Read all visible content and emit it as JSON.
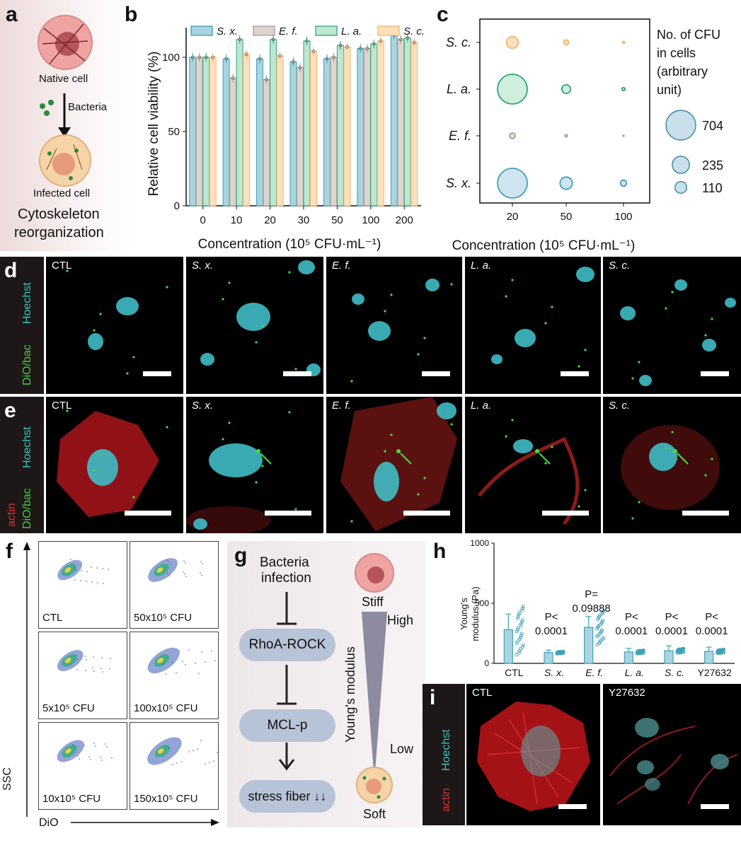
{
  "panel_labels": {
    "a": "a",
    "b": "b",
    "c": "c",
    "d": "d",
    "e": "e",
    "f": "f",
    "g": "g",
    "h": "h",
    "i": "i"
  },
  "panel_a": {
    "native_cell": "Native cell",
    "bacteria": "Bacteria",
    "infected_cell": "Infected cell",
    "line1": "Cytoskeleton",
    "line2": "reorganization"
  },
  "colors": {
    "sx": "#3fa0b8",
    "ef": "#a79c93",
    "la": "#2da579",
    "sc": "#f2b66d"
  },
  "chart_b": {
    "type": "bar",
    "ylabel": "Relative cell viability (%)",
    "xlabel": "Concentration (10⁵ CFU·mL⁻¹)",
    "ylim": [
      0,
      120
    ],
    "yticks": [
      "0",
      "50",
      "100"
    ],
    "categories": [
      "0",
      "10",
      "20",
      "30",
      "50",
      "100",
      "200"
    ],
    "series": [
      {
        "name": "S. x.",
        "values": [
          100,
          99,
          99,
          97,
          99,
          106,
          115
        ]
      },
      {
        "name": "E. f.",
        "values": [
          100,
          86,
          85,
          93,
          100,
          106,
          112
        ]
      },
      {
        "name": "L. a.",
        "values": [
          100,
          112,
          112,
          111,
          108,
          109,
          113
        ]
      },
      {
        "name": "S. c.",
        "values": [
          100,
          102,
          101,
          104,
          107,
          111,
          110
        ]
      }
    ]
  },
  "chart_c": {
    "type": "scatter",
    "xlabel": "Concentration (10⁵ CFU·mL⁻¹)",
    "x_categories": [
      "20",
      "50",
      "100"
    ],
    "y_categories": [
      "S. c.",
      "L. a.",
      "E. f.",
      "S. x."
    ],
    "legend_title_lines": [
      "No. of CFU",
      "in cells",
      "(arbitrary",
      "unit)"
    ],
    "legend_values": [
      "704",
      "235",
      "110"
    ],
    "sizes": {
      "S. c.": [
        110,
        20,
        4
      ],
      "L. a.": [
        704,
        60,
        8
      ],
      "E. f.": [
        25,
        5,
        1
      ],
      "S. x.": [
        704,
        120,
        30
      ]
    }
  },
  "panel_d": {
    "side_labels": [
      "Hoechst",
      "DiO/bac"
    ],
    "images": [
      "CTL",
      "S. x.",
      "E. f.",
      "L. a.",
      "S. c."
    ]
  },
  "panel_e": {
    "side_labels": [
      "Hoechst",
      "actin",
      "DiO/bac"
    ],
    "images": [
      "CTL",
      "S. x.",
      "E. f.",
      "L. a.",
      "S. c."
    ]
  },
  "panel_f": {
    "yaxis": "SSC",
    "xaxis": "DiO",
    "plots": [
      "CTL",
      "50x10⁵ CFU",
      "5x10⁵ CFU",
      "100x10⁵ CFU",
      "10x10⁵ CFU",
      "150x10⁵ CFU"
    ]
  },
  "panel_g": {
    "top": "Bacteria",
    "top2": "infection",
    "step1": "RhoA-ROCK",
    "step2": "MCL-p",
    "step3": "stress fiber ↓↓",
    "stiff": "Stiff",
    "soft": "Soft",
    "high": "High",
    "low": "Low",
    "axis": "Young's modulus"
  },
  "chart_h": {
    "type": "bar",
    "ylabel_lines": [
      "Young's",
      "modulus (Pa)"
    ],
    "ylim": [
      0,
      1000
    ],
    "yticks": [
      "0",
      "500",
      "1000"
    ],
    "categories": [
      "CTL",
      "S. x.",
      "E. f.",
      "L. a.",
      "S. c.",
      "Y27632"
    ],
    "values": [
      280,
      90,
      300,
      95,
      105,
      100
    ],
    "errors": [
      130,
      20,
      90,
      30,
      40,
      35
    ],
    "annotations": [
      {
        "category": "S. x.",
        "lines": [
          "P<",
          "0.0001"
        ]
      },
      {
        "category": "E. f.",
        "lines": [
          "P=",
          "0.09888"
        ]
      },
      {
        "category": "L. a.",
        "lines": [
          "P<",
          "0.0001"
        ]
      },
      {
        "category": "S. c.",
        "lines": [
          "P<",
          "0.0001"
        ]
      },
      {
        "category": "Y27632",
        "lines": [
          "P<",
          "0.0001"
        ]
      }
    ]
  },
  "panel_i": {
    "side_labels": [
      "Hoechst",
      "actin"
    ],
    "images": [
      "CTL",
      "Y27632"
    ]
  }
}
